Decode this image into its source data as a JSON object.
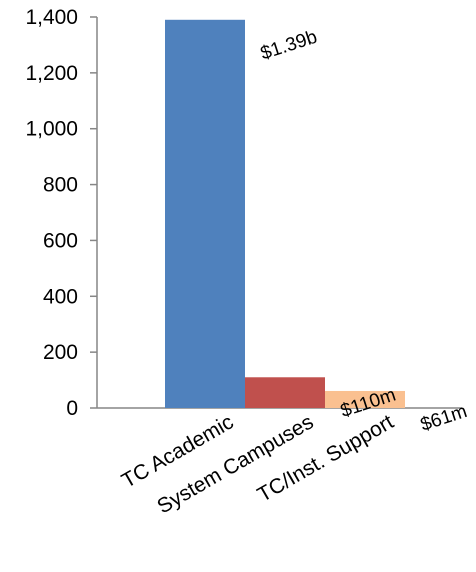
{
  "chart_data": {
    "type": "bar",
    "categories": [
      "TC Academic",
      "System Campuses",
      "TC/Inst. Support"
    ],
    "values": [
      1390,
      110,
      61
    ],
    "data_labels": [
      "$1.39b",
      "$110m",
      "$61m"
    ],
    "colors": [
      "#4F81BD",
      "#C0504D",
      "#FAC090"
    ],
    "y_ticks": [
      "0",
      "200",
      "400",
      "600",
      "800",
      "1,000",
      "1,200",
      "1,400"
    ],
    "ylim": [
      0,
      1400
    ],
    "grid": false,
    "legend": "none",
    "title": "",
    "xlabel": "",
    "ylabel": ""
  }
}
